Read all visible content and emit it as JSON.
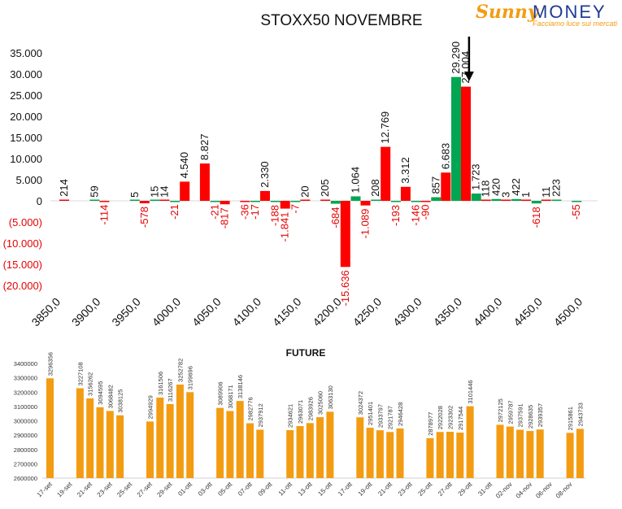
{
  "logo": {
    "word1": "Sunny",
    "word2": "MONEY",
    "tagline": "Facciamo luce sui mercati"
  },
  "colors": {
    "positive": "#00A651",
    "negative": "#FF0000",
    "future": "#F39C12",
    "text_negative": "#E60000"
  },
  "chart_data": [
    {
      "type": "bar",
      "title": "STOXX50 NOVEMBRE",
      "ylim": [
        -20000,
        35000
      ],
      "yticks": [
        {
          "value": 35000,
          "label": "35.000"
        },
        {
          "value": 30000,
          "label": "30.000"
        },
        {
          "value": 25000,
          "label": "25.000"
        },
        {
          "value": 20000,
          "label": "20.000"
        },
        {
          "value": 15000,
          "label": "15.000"
        },
        {
          "value": 10000,
          "label": "10.000"
        },
        {
          "value": 5000,
          "label": "5.000"
        },
        {
          "value": 0,
          "label": "0"
        },
        {
          "value": -5000,
          "label": "(5.000)"
        },
        {
          "value": -10000,
          "label": "(10.000)"
        },
        {
          "value": -15000,
          "label": "(15.000)"
        },
        {
          "value": -20000,
          "label": "(20.000)"
        }
      ],
      "xticks": [
        "3850,0",
        "3900,0",
        "3950,0",
        "4000,0",
        "4050,0",
        "4100,0",
        "4150,0",
        "4200,0",
        "4250,0",
        "4300,0",
        "4350,0",
        "4400,0",
        "4450,0",
        "4500,0"
      ],
      "xrange": [
        3850,
        4500
      ],
      "bars": [
        {
          "strike": 3850,
          "series": "put",
          "value": 214,
          "label": "214"
        },
        {
          "strike": 3900,
          "series": "call",
          "value": 59,
          "label": "59"
        },
        {
          "strike": 3900,
          "series": "put",
          "value": -114,
          "label": "-114"
        },
        {
          "strike": 3950,
          "series": "call",
          "value": 5,
          "label": "5"
        },
        {
          "strike": 3950,
          "series": "put",
          "value": -578,
          "label": "-578"
        },
        {
          "strike": 3975,
          "series": "call",
          "value": 15,
          "label": "15"
        },
        {
          "strike": 3975,
          "series": "put",
          "value": 14,
          "label": "14"
        },
        {
          "strike": 4000,
          "series": "put",
          "value": 4540,
          "label": "4.540"
        },
        {
          "strike": 4000,
          "series": "call",
          "value": -21,
          "label": "-21"
        },
        {
          "strike": 4025,
          "series": "put",
          "value": 8827,
          "label": "8.827"
        },
        {
          "strike": 4050,
          "series": "put",
          "value": -817,
          "label": "-817"
        },
        {
          "strike": 4050,
          "series": "call",
          "value": -21,
          "label": "-21"
        },
        {
          "strike": 4075,
          "series": "put",
          "value": -36,
          "label": "-36"
        },
        {
          "strike": 4100,
          "series": "put",
          "value": 2330,
          "label": "2.330"
        },
        {
          "strike": 4100,
          "series": "call",
          "value": -17,
          "label": "-17"
        },
        {
          "strike": 4125,
          "series": "put",
          "value": -1841,
          "label": "-1.841"
        },
        {
          "strike": 4125,
          "series": "call",
          "value": -188,
          "label": "-188"
        },
        {
          "strike": 4150,
          "series": "put",
          "value": 20,
          "label": "20"
        },
        {
          "strike": 4150,
          "series": "call",
          "value": -7,
          "label": "-7"
        },
        {
          "strike": 4175,
          "series": "put",
          "value": 205,
          "label": "205"
        },
        {
          "strike": 4200,
          "series": "call",
          "value": -684,
          "label": "-684"
        },
        {
          "strike": 4200,
          "series": "put",
          "value": -15636,
          "label": "-15.636"
        },
        {
          "strike": 4225,
          "series": "call",
          "value": 1064,
          "label": "1.064"
        },
        {
          "strike": 4225,
          "series": "put",
          "value": -1089,
          "label": "-1.089"
        },
        {
          "strike": 4250,
          "series": "call",
          "value": 208,
          "label": "208"
        },
        {
          "strike": 4250,
          "series": "put",
          "value": 12769,
          "label": "12.769"
        },
        {
          "strike": 4275,
          "series": "call",
          "value": -193,
          "label": "-193"
        },
        {
          "strike": 4275,
          "series": "put",
          "value": 3312,
          "label": "3.312"
        },
        {
          "strike": 4300,
          "series": "call",
          "value": -146,
          "label": "-146"
        },
        {
          "strike": 4300,
          "series": "put",
          "value": -90,
          "label": "-90"
        },
        {
          "strike": 4325,
          "series": "call",
          "value": 857,
          "label": "857"
        },
        {
          "strike": 4325,
          "series": "put",
          "value": 6683,
          "label": "6.683"
        },
        {
          "strike": 4350,
          "series": "call",
          "value": 29290,
          "label": "29.290"
        },
        {
          "strike": 4350,
          "series": "put",
          "value": 27004,
          "label": "27.004"
        },
        {
          "strike": 4375,
          "series": "call",
          "value": 1723,
          "label": "1.723"
        },
        {
          "strike": 4375,
          "series": "put",
          "value": 118,
          "label": "118"
        },
        {
          "strike": 4400,
          "series": "call",
          "value": 420,
          "label": "420"
        },
        {
          "strike": 4400,
          "series": "put",
          "value": 3,
          "label": "3"
        },
        {
          "strike": 4425,
          "series": "call",
          "value": 422,
          "label": "422"
        },
        {
          "strike": 4425,
          "series": "put",
          "value": 1,
          "label": "1"
        },
        {
          "strike": 4450,
          "series": "call",
          "value": -618,
          "label": "-618"
        },
        {
          "strike": 4450,
          "series": "put",
          "value": 11,
          "label": "11"
        },
        {
          "strike": 4475,
          "series": "call",
          "value": 223,
          "label": "223"
        },
        {
          "strike": 4500,
          "series": "call",
          "value": -55,
          "label": "-55"
        }
      ],
      "marker_strike": 4360
    },
    {
      "type": "bar",
      "title": "FUTURE",
      "ylim": [
        2600000,
        3400000
      ],
      "yticks": [
        3400000,
        3300000,
        3200000,
        3100000,
        3000000,
        2900000,
        2800000,
        2700000,
        2600000
      ],
      "categories": [
        "17-set",
        "",
        "19-set",
        "",
        "21-set",
        "",
        "23-set",
        "",
        "25-set",
        "",
        "27-set",
        "",
        "29-set",
        "",
        "01-ott",
        "",
        "03-ott",
        "",
        "05-ott",
        "",
        "07-ott",
        "",
        "09-ott",
        "",
        "11-ott",
        "",
        "13-ott",
        "",
        "15-ott",
        "",
        "17-ott",
        "",
        "19-ott",
        "",
        "21-ott",
        "",
        "23-ott",
        "",
        "25-ott",
        "",
        "27-ott",
        "",
        "29-ott",
        "",
        "31-ott",
        "",
        "02-nov",
        "",
        "04-nov",
        "",
        "06-nov",
        "",
        "08-nov",
        ""
      ],
      "values": [
        3296356,
        null,
        null,
        3227108,
        3156262,
        3094595,
        3068482,
        3038125,
        null,
        null,
        2994929,
        3161506,
        3116267,
        3252782,
        3199696,
        null,
        null,
        3089906,
        3068171,
        3138146,
        2982776,
        2937912,
        null,
        null,
        2934621,
        2963071,
        2983926,
        3025060,
        3063130,
        null,
        null,
        3024372,
        2951401,
        2933797,
        2921787,
        2946428,
        null,
        null,
        2878977,
        2922028,
        2923302,
        2917544,
        3101446,
        null,
        null,
        2972125,
        2959787,
        2937591,
        2928635,
        2939357,
        null,
        null,
        2915861,
        2943733
      ]
    }
  ]
}
